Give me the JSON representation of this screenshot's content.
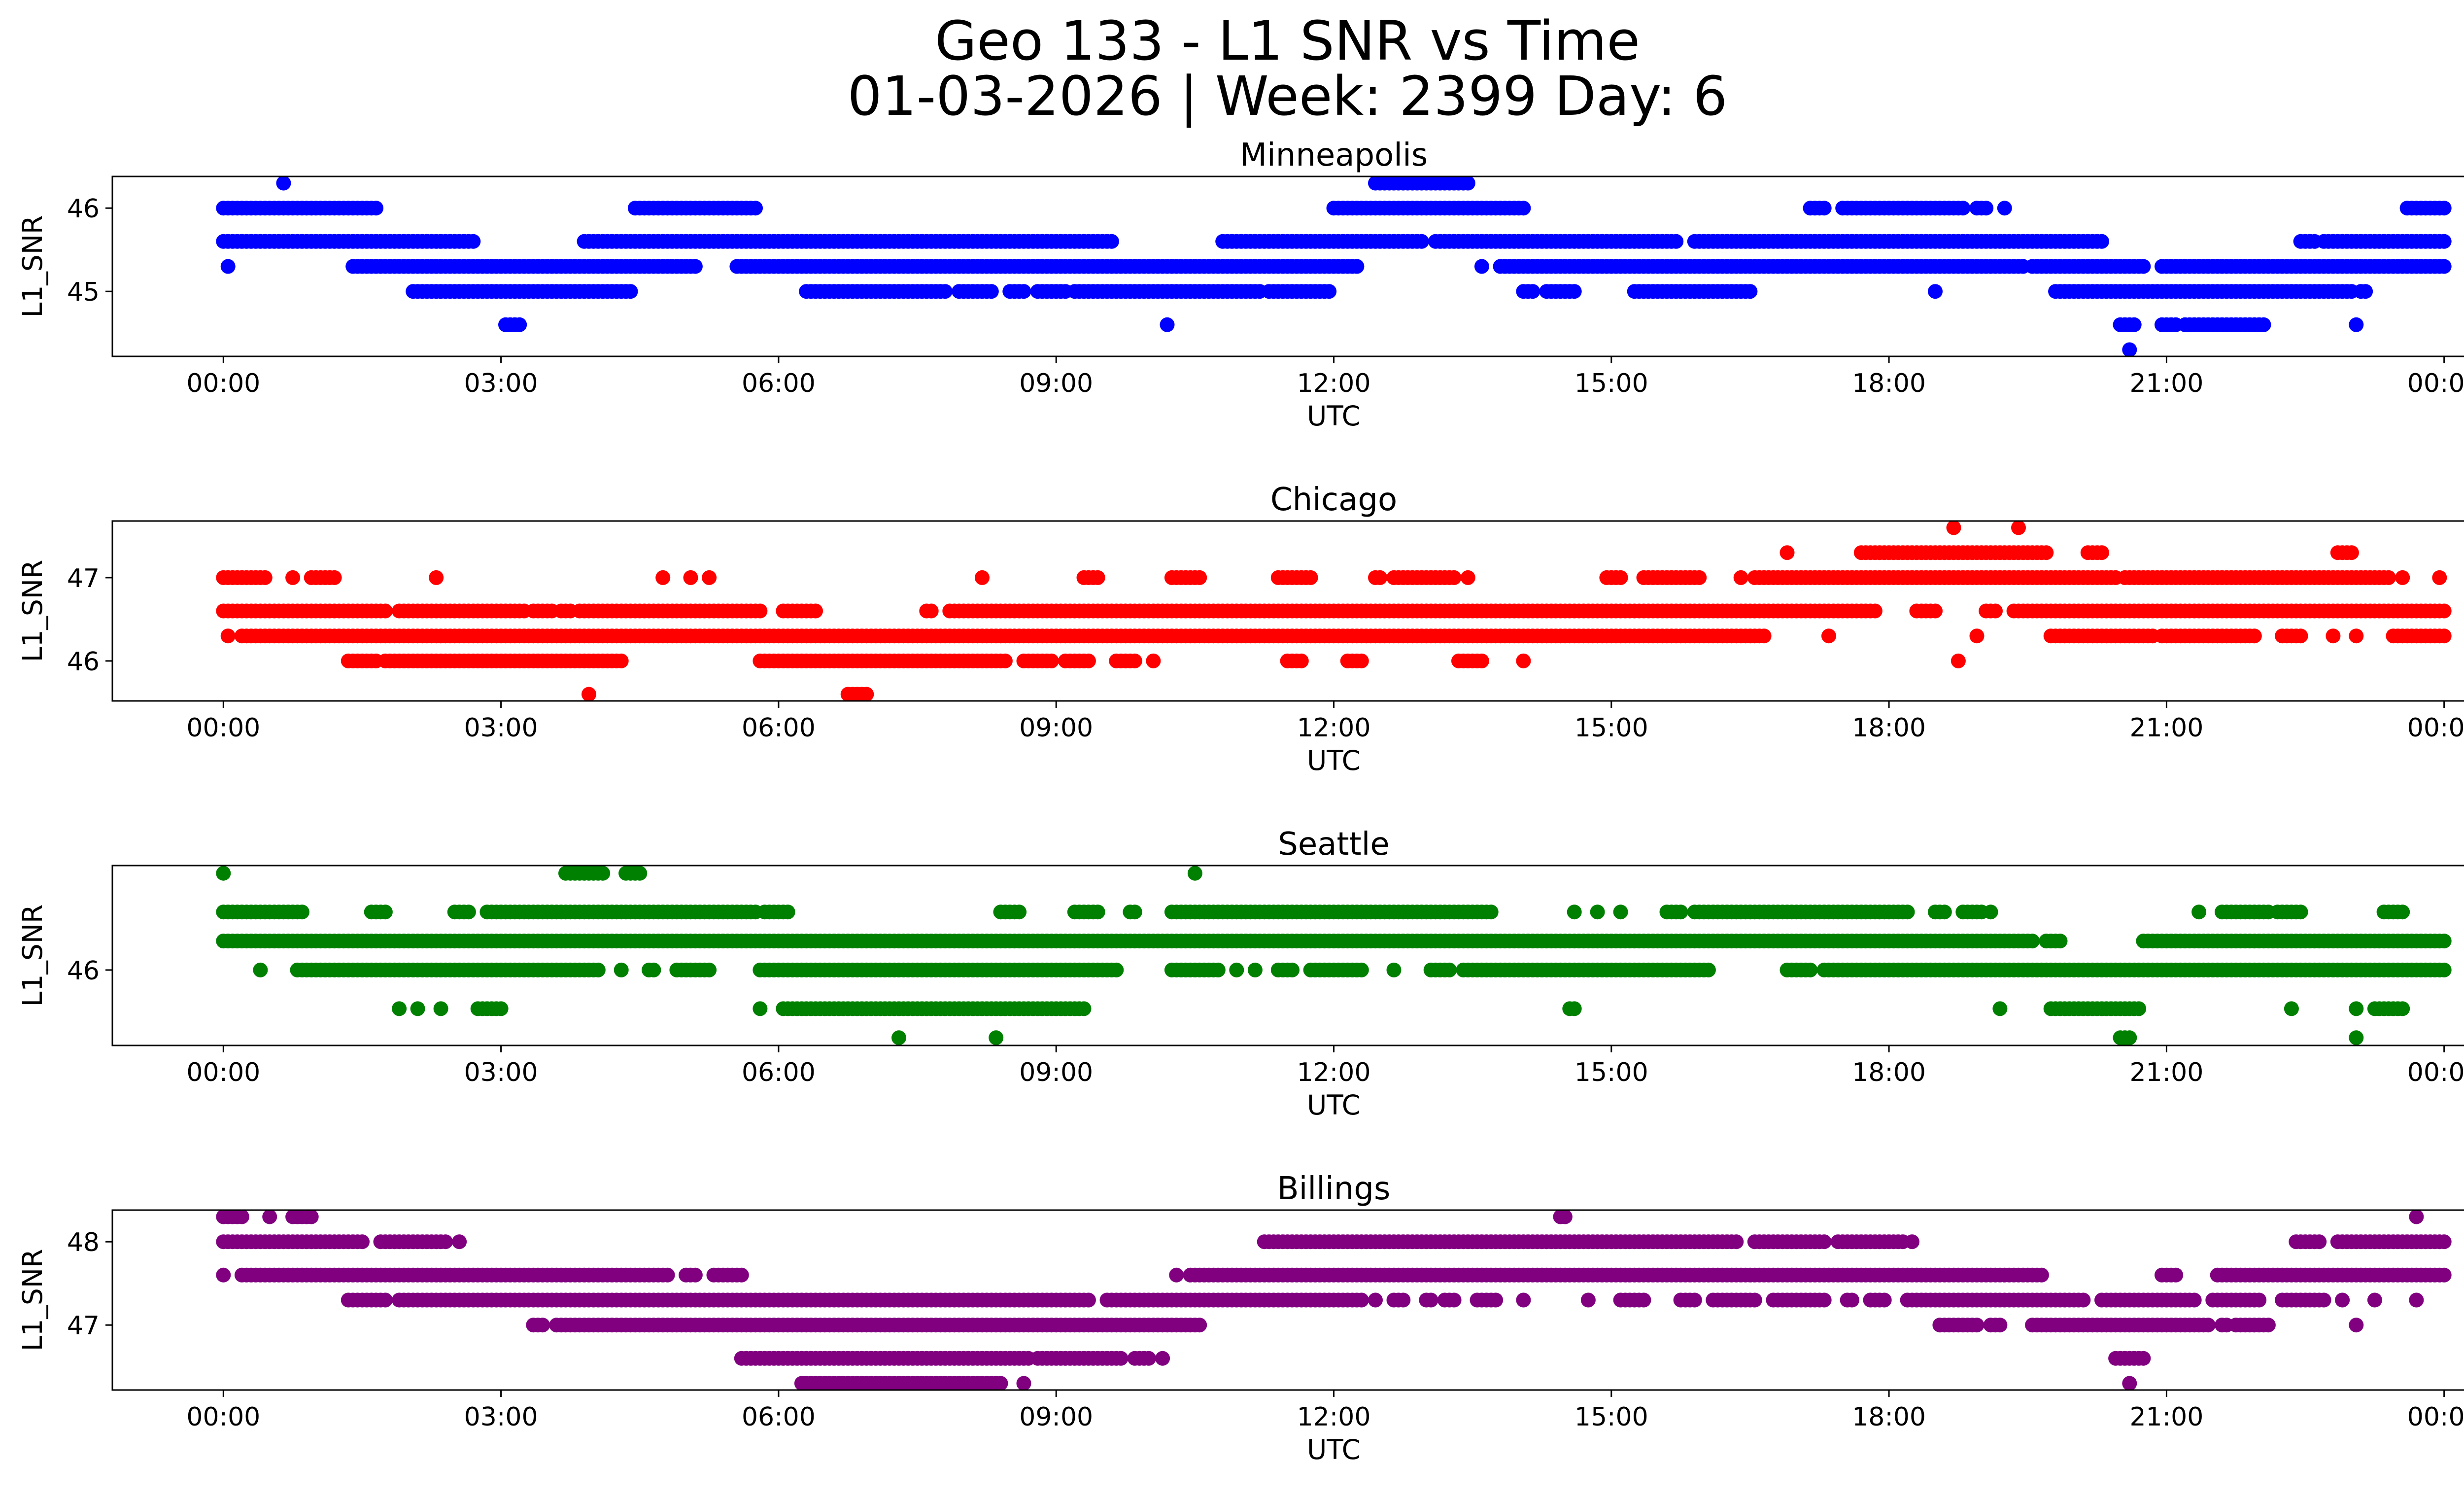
{
  "figure": {
    "title_line1": "Geo 133 - L1 SNR vs Time",
    "title_line2": "01-03-2026 | Week: 2399 Day: 6"
  },
  "chart_data": [
    {
      "type": "scatter",
      "title": "Minneapolis",
      "xlabel": "UTC",
      "ylabel": "L1_SNR",
      "color": "#0000ff",
      "xticks": [
        "00:00",
        "03:00",
        "06:00",
        "09:00",
        "12:00",
        "15:00",
        "18:00",
        "21:00",
        "00:00"
      ],
      "yticks": [
        45,
        46
      ],
      "xlim_hours": [
        -1.2,
        25.2
      ],
      "ylim": [
        44.22,
        46.38
      ],
      "levels": [
        {
          "y": 46.3,
          "ranges": [
            [
              0.65,
              0.65
            ],
            [
              12.45,
              13.45
            ]
          ]
        },
        {
          "y": 46.0,
          "ranges": [
            [
              0.0,
              1.65
            ],
            [
              4.45,
              5.75
            ],
            [
              12.0,
              14.05
            ],
            [
              17.15,
              17.3
            ],
            [
              17.5,
              18.8
            ],
            [
              18.95,
              19.05
            ],
            [
              19.25,
              19.25
            ],
            [
              23.6,
              24.0
            ]
          ]
        },
        {
          "y": 45.6,
          "ranges": [
            [
              0.0,
              2.7
            ],
            [
              3.9,
              9.6
            ],
            [
              10.8,
              12.95
            ],
            [
              13.1,
              15.7
            ],
            [
              15.9,
              20.3
            ],
            [
              22.45,
              22.6
            ],
            [
              22.7,
              24.0
            ]
          ]
        },
        {
          "y": 45.3,
          "ranges": [
            [
              0.05,
              0.05
            ],
            [
              1.4,
              5.1
            ],
            [
              5.55,
              12.25
            ],
            [
              13.6,
              13.6
            ],
            [
              13.8,
              19.45
            ],
            [
              19.55,
              20.75
            ],
            [
              20.95,
              24.0
            ]
          ]
        },
        {
          "y": 45.0,
          "ranges": [
            [
              2.05,
              2.25
            ],
            [
              2.3,
              4.4
            ],
            [
              6.3,
              7.8
            ],
            [
              7.95,
              8.3
            ],
            [
              8.5,
              8.65
            ],
            [
              8.8,
              9.1
            ],
            [
              9.2,
              11.2
            ],
            [
              11.3,
              11.95
            ],
            [
              14.05,
              14.15
            ],
            [
              14.3,
              14.6
            ],
            [
              15.25,
              16.5
            ],
            [
              18.5,
              18.5
            ],
            [
              19.8,
              23.0
            ],
            [
              23.1,
              23.15
            ]
          ]
        },
        {
          "y": 44.6,
          "ranges": [
            [
              3.05,
              3.2
            ],
            [
              10.2,
              10.2
            ],
            [
              20.5,
              20.65
            ],
            [
              20.95,
              21.1
            ],
            [
              21.2,
              22.05
            ],
            [
              23.05,
              23.05
            ]
          ]
        },
        {
          "y": 44.3,
          "ranges": [
            [
              20.6,
              20.6
            ]
          ]
        }
      ]
    },
    {
      "type": "scatter",
      "title": "Chicago",
      "xlabel": "UTC",
      "ylabel": "L1_SNR",
      "color": "#ff0000",
      "xticks": [
        "00:00",
        "03:00",
        "06:00",
        "09:00",
        "12:00",
        "15:00",
        "18:00",
        "21:00",
        "00:00"
      ],
      "yticks": [
        46,
        47
      ],
      "xlim_hours": [
        -1.2,
        25.2
      ],
      "ylim": [
        45.52,
        47.68
      ],
      "levels": [
        {
          "y": 47.6,
          "ranges": [
            [
              18.7,
              18.7
            ],
            [
              19.4,
              19.4
            ]
          ]
        },
        {
          "y": 47.3,
          "ranges": [
            [
              16.9,
              16.9
            ],
            [
              17.7,
              19.7
            ],
            [
              20.15,
              20.3
            ],
            [
              22.85,
              23.0
            ]
          ]
        },
        {
          "y": 47.0,
          "ranges": [
            [
              0.0,
              0.45
            ],
            [
              0.75,
              0.75
            ],
            [
              0.95,
              1.2
            ],
            [
              2.3,
              2.3
            ],
            [
              4.75,
              4.75
            ],
            [
              5.05,
              5.05
            ],
            [
              5.25,
              5.25
            ],
            [
              8.2,
              8.2
            ],
            [
              9.3,
              9.45
            ],
            [
              10.25,
              10.55
            ],
            [
              11.4,
              11.75
            ],
            [
              12.45,
              12.5
            ],
            [
              12.65,
              13.3
            ],
            [
              13.45,
              13.45
            ],
            [
              14.95,
              15.1
            ],
            [
              15.35,
              15.95
            ],
            [
              16.4,
              16.4
            ],
            [
              16.55,
              20.45
            ],
            [
              20.55,
              23.4
            ],
            [
              23.55,
              23.55
            ],
            [
              23.95,
              23.95
            ]
          ]
        },
        {
          "y": 46.6,
          "ranges": [
            [
              0.0,
              1.75
            ],
            [
              1.9,
              3.25
            ],
            [
              3.35,
              3.55
            ],
            [
              3.65,
              3.75
            ],
            [
              3.85,
              5.8
            ],
            [
              6.05,
              6.4
            ],
            [
              7.6,
              7.65
            ],
            [
              7.85,
              7.95
            ],
            [
              8.0,
              17.85
            ],
            [
              18.3,
              18.5
            ],
            [
              19.05,
              19.15
            ],
            [
              19.35,
              24.0
            ]
          ]
        },
        {
          "y": 46.3,
          "ranges": [
            [
              0.05,
              0.05
            ],
            [
              0.2,
              16.65
            ],
            [
              17.35,
              17.35
            ],
            [
              18.95,
              18.95
            ],
            [
              19.75,
              20.85
            ],
            [
              20.95,
              21.95
            ],
            [
              22.25,
              22.45
            ],
            [
              22.8,
              22.8
            ],
            [
              23.05,
              23.05
            ],
            [
              23.45,
              24.0
            ]
          ]
        },
        {
          "y": 46.0,
          "ranges": [
            [
              1.35,
              1.65
            ],
            [
              1.75,
              4.3
            ],
            [
              5.8,
              6.15
            ],
            [
              6.2,
              8.45
            ],
            [
              8.65,
              8.95
            ],
            [
              9.1,
              9.35
            ],
            [
              9.65,
              9.85
            ],
            [
              10.05,
              10.05
            ],
            [
              11.5,
              11.65
            ],
            [
              12.15,
              12.3
            ],
            [
              13.35,
              13.6
            ],
            [
              14.05,
              14.05
            ],
            [
              18.75,
              18.75
            ]
          ]
        },
        {
          "y": 45.6,
          "ranges": [
            [
              3.95,
              3.95
            ],
            [
              6.75,
              6.95
            ]
          ]
        }
      ]
    },
    {
      "type": "scatter",
      "title": "Seattle",
      "xlabel": "UTC",
      "ylabel": "L1_SNR",
      "color": "#008000",
      "xticks": [
        "00:00",
        "03:00",
        "06:00",
        "09:00",
        "12:00",
        "15:00",
        "18:00",
        "21:00",
        "00:00"
      ],
      "yticks": [
        46
      ],
      "xlim_hours": [
        -1.2,
        25.2
      ],
      "ylim": [
        45.22,
        47.08
      ],
      "levels": [
        {
          "y": 47.0,
          "ranges": [
            [
              0.0,
              0.0
            ],
            [
              3.7,
              4.1
            ],
            [
              4.35,
              4.5
            ],
            [
              10.5,
              10.5
            ]
          ]
        },
        {
          "y": 46.6,
          "ranges": [
            [
              0.0,
              0.85
            ],
            [
              1.6,
              1.75
            ],
            [
              2.5,
              2.65
            ],
            [
              2.85,
              5.75
            ],
            [
              5.85,
              6.1
            ],
            [
              8.4,
              8.6
            ],
            [
              9.2,
              9.45
            ],
            [
              9.8,
              9.85
            ],
            [
              10.25,
              13.7
            ],
            [
              14.6,
              14.6
            ],
            [
              14.85,
              14.85
            ],
            [
              15.1,
              15.1
            ],
            [
              15.6,
              15.75
            ],
            [
              15.9,
              18.2
            ],
            [
              18.5,
              18.6
            ],
            [
              18.8,
              19.0
            ],
            [
              19.1,
              19.1
            ],
            [
              21.35,
              21.35
            ],
            [
              21.6,
              22.1
            ],
            [
              22.2,
              22.45
            ],
            [
              23.35,
              23.55
            ]
          ]
        },
        {
          "y": 46.3,
          "ranges": [
            [
              0.0,
              19.55
            ],
            [
              19.7,
              19.85
            ],
            [
              20.75,
              24.0
            ]
          ]
        },
        {
          "y": 46.0,
          "ranges": [
            [
              0.4,
              0.4
            ],
            [
              0.8,
              4.05
            ],
            [
              4.3,
              4.3
            ],
            [
              4.6,
              4.65
            ],
            [
              4.9,
              5.25
            ],
            [
              5.8,
              9.65
            ],
            [
              10.25,
              10.75
            ],
            [
              10.95,
              10.95
            ],
            [
              11.15,
              11.15
            ],
            [
              11.4,
              11.55
            ],
            [
              11.75,
              12.3
            ],
            [
              12.65,
              12.65
            ],
            [
              13.05,
              13.25
            ],
            [
              13.4,
              16.05
            ],
            [
              16.9,
              17.15
            ],
            [
              17.3,
              24.0
            ]
          ]
        },
        {
          "y": 45.6,
          "ranges": [
            [
              1.9,
              1.9
            ],
            [
              2.1,
              2.1
            ],
            [
              2.35,
              2.35
            ],
            [
              2.75,
              3.0
            ],
            [
              5.8,
              5.8
            ],
            [
              6.05,
              9.3
            ],
            [
              14.55,
              14.6
            ],
            [
              19.2,
              19.2
            ],
            [
              19.75,
              20.7
            ],
            [
              22.35,
              22.35
            ],
            [
              23.05,
              23.05
            ],
            [
              23.25,
              23.55
            ]
          ]
        },
        {
          "y": 45.3,
          "ranges": [
            [
              7.3,
              7.3
            ],
            [
              8.35,
              8.35
            ],
            [
              20.5,
              20.6
            ],
            [
              23.05,
              23.05
            ]
          ]
        }
      ]
    },
    {
      "type": "scatter",
      "title": "Billings",
      "xlabel": "UTC",
      "ylabel": "L1_SNR",
      "color": "#800080",
      "xticks": [
        "00:00",
        "03:00",
        "06:00",
        "09:00",
        "12:00",
        "15:00",
        "18:00",
        "21:00",
        "00:00"
      ],
      "yticks": [
        47,
        48
      ],
      "xlim_hours": [
        -1.2,
        25.2
      ],
      "ylim": [
        46.22,
        48.38
      ],
      "levels": [
        {
          "y": 48.3,
          "ranges": [
            [
              0.0,
              0.2
            ],
            [
              0.5,
              0.5
            ],
            [
              0.75,
              0.95
            ],
            [
              14.45,
              14.5
            ],
            [
              23.7,
              23.7
            ]
          ]
        },
        {
          "y": 48.0,
          "ranges": [
            [
              0.0,
              1.5
            ],
            [
              1.7,
              2.4
            ],
            [
              2.55,
              2.55
            ],
            [
              11.25,
              16.35
            ],
            [
              16.55,
              17.3
            ],
            [
              17.45,
              18.15
            ],
            [
              18.25,
              18.25
            ],
            [
              22.4,
              22.65
            ],
            [
              22.85,
              24.0
            ]
          ]
        },
        {
          "y": 47.6,
          "ranges": [
            [
              0.0,
              0.0
            ],
            [
              0.2,
              4.8
            ],
            [
              5.0,
              5.1
            ],
            [
              5.3,
              5.6
            ],
            [
              10.3,
              10.3
            ],
            [
              10.45,
              19.65
            ],
            [
              20.95,
              21.1
            ],
            [
              21.55,
              24.0
            ]
          ]
        },
        {
          "y": 47.3,
          "ranges": [
            [
              1.35,
              1.75
            ],
            [
              1.9,
              9.35
            ],
            [
              9.55,
              12.3
            ],
            [
              12.45,
              12.45
            ],
            [
              12.65,
              12.75
            ],
            [
              13.0,
              13.05
            ],
            [
              13.2,
              13.3
            ],
            [
              13.55,
              13.75
            ],
            [
              14.05,
              14.05
            ],
            [
              14.75,
              14.75
            ],
            [
              15.1,
              15.35
            ],
            [
              15.75,
              15.9
            ],
            [
              16.1,
              16.55
            ],
            [
              16.75,
              17.3
            ],
            [
              17.55,
              17.6
            ],
            [
              17.8,
              17.95
            ],
            [
              18.2,
              20.1
            ],
            [
              20.3,
              21.3
            ],
            [
              21.5,
              22.0
            ],
            [
              22.25,
              22.7
            ],
            [
              22.9,
              22.9
            ],
            [
              23.25,
              23.25
            ],
            [
              23.7,
              23.7
            ]
          ]
        },
        {
          "y": 47.0,
          "ranges": [
            [
              3.35,
              3.45
            ],
            [
              3.6,
              4.55
            ],
            [
              4.6,
              10.55
            ],
            [
              18.55,
              18.95
            ],
            [
              19.1,
              19.2
            ],
            [
              19.55,
              21.45
            ],
            [
              21.6,
              21.65
            ],
            [
              21.75,
              22.1
            ],
            [
              23.05,
              23.05
            ]
          ]
        },
        {
          "y": 46.6,
          "ranges": [
            [
              5.6,
              8.7
            ],
            [
              8.8,
              9.7
            ],
            [
              9.85,
              10.0
            ],
            [
              10.15,
              10.15
            ],
            [
              20.45,
              20.75
            ]
          ]
        },
        {
          "y": 46.3,
          "ranges": [
            [
              6.25,
              8.4
            ],
            [
              8.65,
              8.65
            ],
            [
              20.6,
              20.6
            ]
          ]
        }
      ]
    }
  ]
}
